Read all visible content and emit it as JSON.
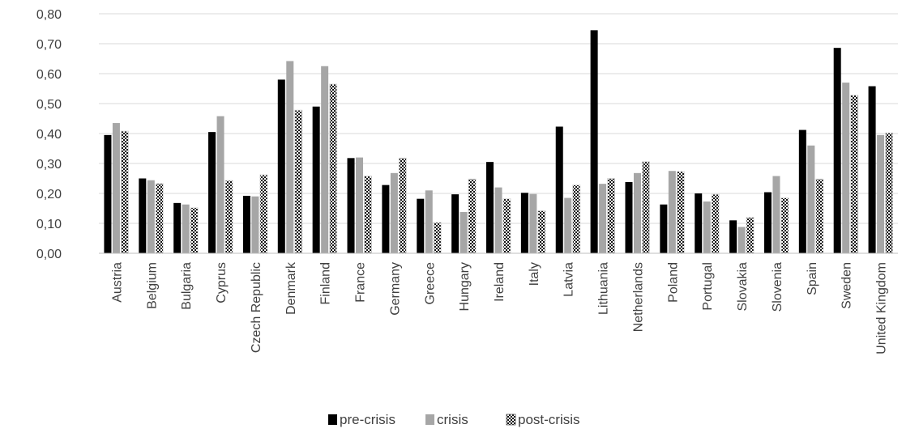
{
  "chart_data": {
    "type": "bar",
    "title": "",
    "xlabel": "",
    "ylabel": "",
    "ylim": [
      0,
      0.8
    ],
    "yticks": [
      0.0,
      0.1,
      0.2,
      0.3,
      0.4,
      0.5,
      0.6,
      0.7,
      0.8
    ],
    "ytick_labels": [
      "0,00",
      "0,10",
      "0,20",
      "0,30",
      "0,40",
      "0,50",
      "0,60",
      "0,70",
      "0,80"
    ],
    "grid": true,
    "legend_position": "bottom",
    "categories": [
      "Austria",
      "Belgium",
      "Bulgaria",
      "Cyprus",
      "Czech Republic",
      "Denmark",
      "Finland",
      "France",
      "Germany",
      "Greece",
      "Hungary",
      "Ireland",
      "Italy",
      "Latvia",
      "Lithuania",
      "Netherlands",
      "Poland",
      "Portugal",
      "Slovakia",
      "Slovenia",
      "Spain",
      "Sweden",
      "United Kingdom"
    ],
    "series": [
      {
        "name": "pre-crisis",
        "color": "#000000",
        "values": [
          0.395,
          0.25,
          0.168,
          0.405,
          0.192,
          0.58,
          0.49,
          0.318,
          0.228,
          0.182,
          0.197,
          0.305,
          0.202,
          0.423,
          0.745,
          0.238,
          0.163,
          0.2,
          0.11,
          0.204,
          0.412,
          0.686,
          0.558
        ]
      },
      {
        "name": "crisis",
        "color": "#a6a6a6",
        "values": [
          0.435,
          0.244,
          0.163,
          0.458,
          0.19,
          0.642,
          0.625,
          0.32,
          0.268,
          0.21,
          0.138,
          0.22,
          0.198,
          0.185,
          0.232,
          0.268,
          0.275,
          0.173,
          0.088,
          0.258,
          0.36,
          0.57,
          0.395
        ]
      },
      {
        "name": "post-crisis",
        "color": "#1a1a1a",
        "pattern": "checker",
        "values": [
          0.408,
          0.233,
          0.152,
          0.243,
          0.262,
          0.478,
          0.565,
          0.258,
          0.318,
          0.103,
          0.248,
          0.182,
          0.142,
          0.228,
          0.25,
          0.306,
          0.273,
          0.197,
          0.12,
          0.185,
          0.248,
          0.528,
          0.402
        ]
      }
    ]
  }
}
